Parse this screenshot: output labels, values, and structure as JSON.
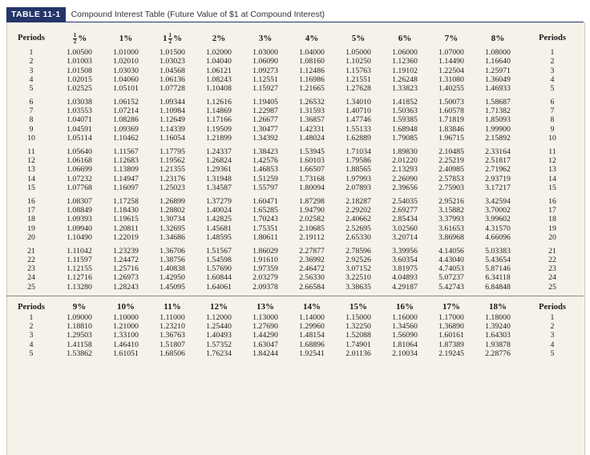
{
  "title": {
    "tag": "TABLE 11-1",
    "caption": "Compound Interest Table (Future Value of $1 at Compound Interest)"
  },
  "colors": {
    "tag_bg": "#24356a",
    "sheet_bg": "#f5f2ea"
  },
  "headers": {
    "periods": "Periods",
    "rates_a": [
      {
        "whole": "",
        "num": "1",
        "den": "2",
        "pct": "%"
      },
      {
        "whole": "1%",
        "num": "",
        "den": "",
        "pct": ""
      },
      {
        "whole": "1",
        "num": "1",
        "den": "2",
        "pct": "%"
      },
      {
        "whole": "2%",
        "num": "",
        "den": "",
        "pct": ""
      },
      {
        "whole": "3%",
        "num": "",
        "den": "",
        "pct": ""
      },
      {
        "whole": "4%",
        "num": "",
        "den": "",
        "pct": ""
      },
      {
        "whole": "5%",
        "num": "",
        "den": "",
        "pct": ""
      },
      {
        "whole": "6%",
        "num": "",
        "den": "",
        "pct": ""
      },
      {
        "whole": "7%",
        "num": "",
        "den": "",
        "pct": ""
      },
      {
        "whole": "8%",
        "num": "",
        "den": "",
        "pct": ""
      }
    ],
    "rates_b": [
      "9%",
      "10%",
      "11%",
      "12%",
      "13%",
      "14%",
      "15%",
      "16%",
      "17%",
      "18%"
    ]
  },
  "blocks_a": [
    [
      {
        "p": "1",
        "v": [
          "1.00500",
          "1.01000",
          "1.01500",
          "1.02000",
          "1.03000",
          "1.04000",
          "1.05000",
          "1.06000",
          "1.07000",
          "1.08000"
        ]
      },
      {
        "p": "2",
        "v": [
          "1.01003",
          "1.02010",
          "1.03023",
          "1.04040",
          "1.06090",
          "1.08160",
          "1.10250",
          "1.12360",
          "1.14490",
          "1.16640"
        ]
      },
      {
        "p": "3",
        "v": [
          "1.01508",
          "1.03030",
          "1.04568",
          "1.06121",
          "1.09273",
          "1.12486",
          "1.15763",
          "1.19102",
          "1.22504",
          "1.25971"
        ]
      },
      {
        "p": "4",
        "v": [
          "1.02015",
          "1.04060",
          "1.06136",
          "1.08243",
          "1.12551",
          "1.16986",
          "1.21551",
          "1.26248",
          "1.31080",
          "1.36049"
        ]
      },
      {
        "p": "5",
        "v": [
          "1.02525",
          "1.05101",
          "1.07728",
          "1.10408",
          "1.15927",
          "1.21665",
          "1.27628",
          "1.33823",
          "1.40255",
          "1.46933"
        ]
      }
    ],
    [
      {
        "p": "6",
        "v": [
          "1.03038",
          "1.06152",
          "1.09344",
          "1.12616",
          "1.19405",
          "1.26532",
          "1.34010",
          "1.41852",
          "1.50073",
          "1.58687"
        ]
      },
      {
        "p": "7",
        "v": [
          "1.03553",
          "1.07214",
          "1.10984",
          "1.14869",
          "1.22987",
          "1.31593",
          "1.40710",
          "1.50363",
          "1.60578",
          "1.71382"
        ]
      },
      {
        "p": "8",
        "v": [
          "1.04071",
          "1.08286",
          "1.12649",
          "1.17166",
          "1.26677",
          "1.36857",
          "1.47746",
          "1.59385",
          "1.71819",
          "1.85093"
        ]
      },
      {
        "p": "9",
        "v": [
          "1.04591",
          "1.09369",
          "1.14339",
          "1.19509",
          "1.30477",
          "1.42331",
          "1.55133",
          "1.68948",
          "1.83846",
          "1.99900"
        ]
      },
      {
        "p": "10",
        "v": [
          "1.05114",
          "1.10462",
          "1.16054",
          "1.21899",
          "1.34392",
          "1.48024",
          "1.62889",
          "1.79085",
          "1.96715",
          "2.15892"
        ]
      }
    ],
    [
      {
        "p": "11",
        "v": [
          "1.05640",
          "1.11567",
          "1.17795",
          "1.24337",
          "1.38423",
          "1.53945",
          "1.71034",
          "1.89830",
          "2.10485",
          "2.33164"
        ]
      },
      {
        "p": "12",
        "v": [
          "1.06168",
          "1.12683",
          "1.19562",
          "1.26824",
          "1.42576",
          "1.60103",
          "1.79586",
          "2.01220",
          "2.25219",
          "2.51817"
        ]
      },
      {
        "p": "13",
        "v": [
          "1.06699",
          "1.13809",
          "1.21355",
          "1.29361",
          "1.46853",
          "1.66507",
          "1.88565",
          "2.13293",
          "2.40985",
          "2.71962"
        ]
      },
      {
        "p": "14",
        "v": [
          "1.07232",
          "1.14947",
          "1.23176",
          "1.31948",
          "1.51259",
          "1.73168",
          "1.97993",
          "2.26090",
          "2.57853",
          "2.93719"
        ]
      },
      {
        "p": "15",
        "v": [
          "1.07768",
          "1.16097",
          "1.25023",
          "1.34587",
          "1.55797",
          "1.80094",
          "2.07893",
          "2.39656",
          "2.75903",
          "3.17217"
        ]
      }
    ],
    [
      {
        "p": "16",
        "v": [
          "1.08307",
          "1.17258",
          "1.26899",
          "1.37279",
          "1.60471",
          "1.87298",
          "2.18287",
          "2.54035",
          "2.95216",
          "3.42594"
        ]
      },
      {
        "p": "17",
        "v": [
          "1.08849",
          "1.18430",
          "1.28802",
          "1.40024",
          "1.65285",
          "1.94790",
          "2.29202",
          "2.69277",
          "3.15882",
          "3.70002"
        ]
      },
      {
        "p": "18",
        "v": [
          "1.09393",
          "1.19615",
          "1.30734",
          "1.42825",
          "1.70243",
          "2.02582",
          "2.40662",
          "2.85434",
          "3.37993",
          "3.99602"
        ]
      },
      {
        "p": "19",
        "v": [
          "1.09940",
          "1.20811",
          "1.32695",
          "1.45681",
          "1.75351",
          "2.10685",
          "2.52695",
          "3.02560",
          "3.61653",
          "4.31570"
        ]
      },
      {
        "p": "20",
        "v": [
          "1.10490",
          "1.22019",
          "1.34686",
          "1.48595",
          "1.80611",
          "2.19112",
          "2.65330",
          "3.20714",
          "3.86968",
          "4.66096"
        ]
      }
    ],
    [
      {
        "p": "21",
        "v": [
          "1.11042",
          "1.23239",
          "1.36706",
          "1.51567",
          "1.86029",
          "2.27877",
          "2.78596",
          "3.39956",
          "4.14056",
          "5.03383"
        ]
      },
      {
        "p": "22",
        "v": [
          "1.11597",
          "1.24472",
          "1.38756",
          "1.54598",
          "1.91610",
          "2.36992",
          "2.92526",
          "3.60354",
          "4.43040",
          "5.43654"
        ]
      },
      {
        "p": "23",
        "v": [
          "1.12155",
          "1.25716",
          "1.40838",
          "1.57690",
          "1.97359",
          "2.46472",
          "3.07152",
          "3.81975",
          "4.74053",
          "5.87146"
        ]
      },
      {
        "p": "24",
        "v": [
          "1.12716",
          "1.26973",
          "1.42950",
          "1.60844",
          "2.03279",
          "2.56330",
          "3.22510",
          "4.04893",
          "5.07237",
          "6.34118"
        ]
      },
      {
        "p": "25",
        "v": [
          "1.13280",
          "1.28243",
          "1.45095",
          "1.64061",
          "2.09378",
          "2.66584",
          "3.38635",
          "4.29187",
          "5.42743",
          "6.84848"
        ]
      }
    ]
  ],
  "block_b": [
    {
      "p": "1",
      "v": [
        "1.09000",
        "1.10000",
        "1.11000",
        "1.12000",
        "1.13000",
        "1.14000",
        "1.15000",
        "1.16000",
        "1.17000",
        "1.18000"
      ]
    },
    {
      "p": "2",
      "v": [
        "1.18810",
        "1.21000",
        "1.23210",
        "1.25440",
        "1.27690",
        "1.29960",
        "1.32250",
        "1.34560",
        "1.36890",
        "1.39240"
      ]
    },
    {
      "p": "3",
      "v": [
        "1.29503",
        "1.33100",
        "1.36763",
        "1.40493",
        "1.44290",
        "1.48154",
        "1.52088",
        "1.56090",
        "1.60161",
        "1.64303"
      ]
    },
    {
      "p": "4",
      "v": [
        "1.41158",
        "1.46410",
        "1.51807",
        "1.57352",
        "1.63047",
        "1.68896",
        "1.74901",
        "1.81064",
        "1.87389",
        "1.93878"
      ]
    },
    {
      "p": "5",
      "v": [
        "1.53862",
        "1.61051",
        "1.68506",
        "1.76234",
        "1.84244",
        "1.92541",
        "2.01136",
        "2.10034",
        "2.19245",
        "2.28776"
      ]
    }
  ]
}
